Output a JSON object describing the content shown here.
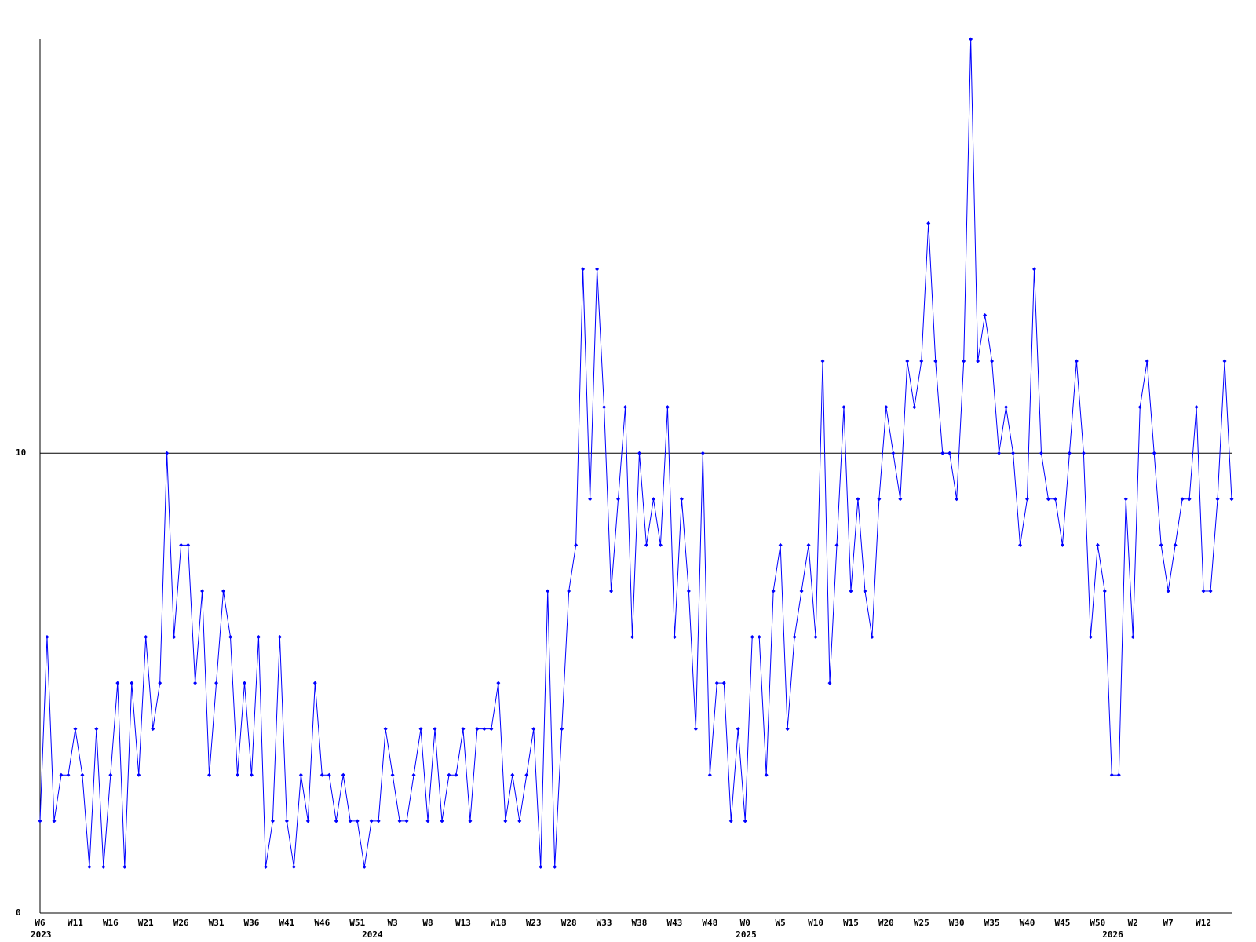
{
  "chart_data": {
    "type": "line",
    "color": "#0000ff",
    "axis_color": "#000000",
    "ylim": [
      0,
      19
    ],
    "yticks": [
      0,
      10
    ],
    "grid": true,
    "categories": [
      "W6",
      null,
      null,
      null,
      null,
      "W11",
      null,
      null,
      null,
      null,
      "W16",
      null,
      null,
      null,
      null,
      "W21",
      null,
      null,
      null,
      null,
      "W26",
      null,
      null,
      null,
      null,
      "W31",
      null,
      null,
      null,
      null,
      "W36",
      null,
      null,
      null,
      null,
      "W41",
      null,
      null,
      null,
      null,
      "W46",
      null,
      null,
      null,
      null,
      "W51",
      null,
      null,
      null,
      null,
      "W3",
      null,
      null,
      null,
      null,
      "W8",
      null,
      null,
      null,
      null,
      "W13",
      null,
      null,
      null,
      null,
      "W18",
      null,
      null,
      null,
      null,
      "W23",
      null,
      null,
      null,
      null,
      "W28",
      null,
      null,
      null,
      null,
      "W33",
      null,
      null,
      null,
      null,
      "W38",
      null,
      null,
      null,
      null,
      "W43",
      null,
      null,
      null,
      null,
      "W48",
      null,
      null,
      null,
      null,
      "W0",
      null,
      null,
      null,
      null,
      "W5",
      null,
      null,
      null,
      null,
      "W10",
      null,
      null,
      null,
      null,
      "W15",
      null,
      null,
      null,
      null,
      "W20",
      null,
      null,
      null,
      null,
      "W25",
      null,
      null,
      null,
      null,
      "W30",
      null,
      null,
      null,
      null,
      "W35",
      null,
      null,
      null,
      null,
      "W40",
      null,
      null,
      null,
      null,
      "W45",
      null,
      null,
      null,
      null,
      "W50",
      null,
      null,
      null,
      null,
      "W2",
      null,
      null,
      null,
      null,
      "W7",
      null,
      null,
      null,
      null,
      "W12",
      null,
      null,
      null,
      null
    ],
    "years": [
      "2023",
      null,
      null,
      null,
      null,
      null,
      null,
      null,
      null,
      null,
      null,
      null,
      null,
      null,
      null,
      null,
      null,
      null,
      null,
      null,
      null,
      null,
      null,
      null,
      null,
      null,
      null,
      null,
      null,
      null,
      null,
      null,
      null,
      null,
      null,
      null,
      null,
      null,
      null,
      null,
      null,
      null,
      null,
      null,
      null,
      null,
      null,
      "2024",
      null,
      null,
      null,
      null,
      null,
      null,
      null,
      null,
      null,
      null,
      null,
      null,
      null,
      null,
      null,
      null,
      null,
      null,
      null,
      null,
      null,
      null,
      null,
      null,
      null,
      null,
      null,
      null,
      null,
      null,
      null,
      null,
      null,
      null,
      null,
      null,
      null,
      null,
      null,
      null,
      null,
      null,
      null,
      null,
      null,
      null,
      null,
      null,
      null,
      null,
      null,
      null,
      "2025",
      null,
      null,
      null,
      null,
      null,
      null,
      null,
      null,
      null,
      null,
      null,
      null,
      null,
      null,
      null,
      null,
      null,
      null,
      null,
      null,
      null,
      null,
      null,
      null,
      null,
      null,
      null,
      null,
      null,
      null,
      null,
      null,
      null,
      null,
      null,
      null,
      null,
      null,
      null,
      null,
      null,
      null,
      null,
      null,
      null,
      null,
      null,
      null,
      null,
      null,
      null,
      "2026",
      null,
      null,
      null,
      null,
      null,
      null,
      null,
      null,
      null,
      null,
      null,
      null,
      null,
      null,
      null,
      null,
      null
    ],
    "values": [
      2,
      6,
      2,
      3,
      3,
      4,
      3,
      1,
      4,
      1,
      3,
      5,
      1,
      5,
      3,
      6,
      4,
      5,
      10,
      6,
      8,
      8,
      5,
      7,
      3,
      5,
      7,
      6,
      3,
      5,
      3,
      6,
      1,
      2,
      6,
      2,
      1,
      3,
      2,
      5,
      3,
      3,
      2,
      3,
      2,
      2,
      1,
      2,
      2,
      4,
      3,
      2,
      2,
      3,
      4,
      2,
      4,
      2,
      3,
      3,
      4,
      2,
      4,
      4,
      4,
      5,
      2,
      3,
      2,
      3,
      4,
      1,
      7,
      1,
      4,
      7,
      8,
      14,
      9,
      14,
      11,
      7,
      9,
      11,
      6,
      10,
      8,
      9,
      8,
      11,
      6,
      9,
      7,
      4,
      10,
      3,
      5,
      5,
      2,
      4,
      2,
      6,
      6,
      3,
      7,
      8,
      4,
      6,
      7,
      8,
      6,
      12,
      5,
      8,
      11,
      7,
      9,
      7,
      6,
      9,
      11,
      10,
      9,
      12,
      11,
      12,
      15,
      12,
      10,
      10,
      9,
      12,
      19,
      12,
      13,
      12,
      10,
      11,
      10,
      8,
      9,
      14,
      10,
      9,
      9,
      8,
      10,
      12,
      10,
      6,
      8,
      7,
      3,
      3,
      9,
      6,
      11,
      12,
      10,
      8,
      7,
      8,
      9,
      9,
      11,
      7,
      7,
      9,
      12,
      9
    ]
  }
}
